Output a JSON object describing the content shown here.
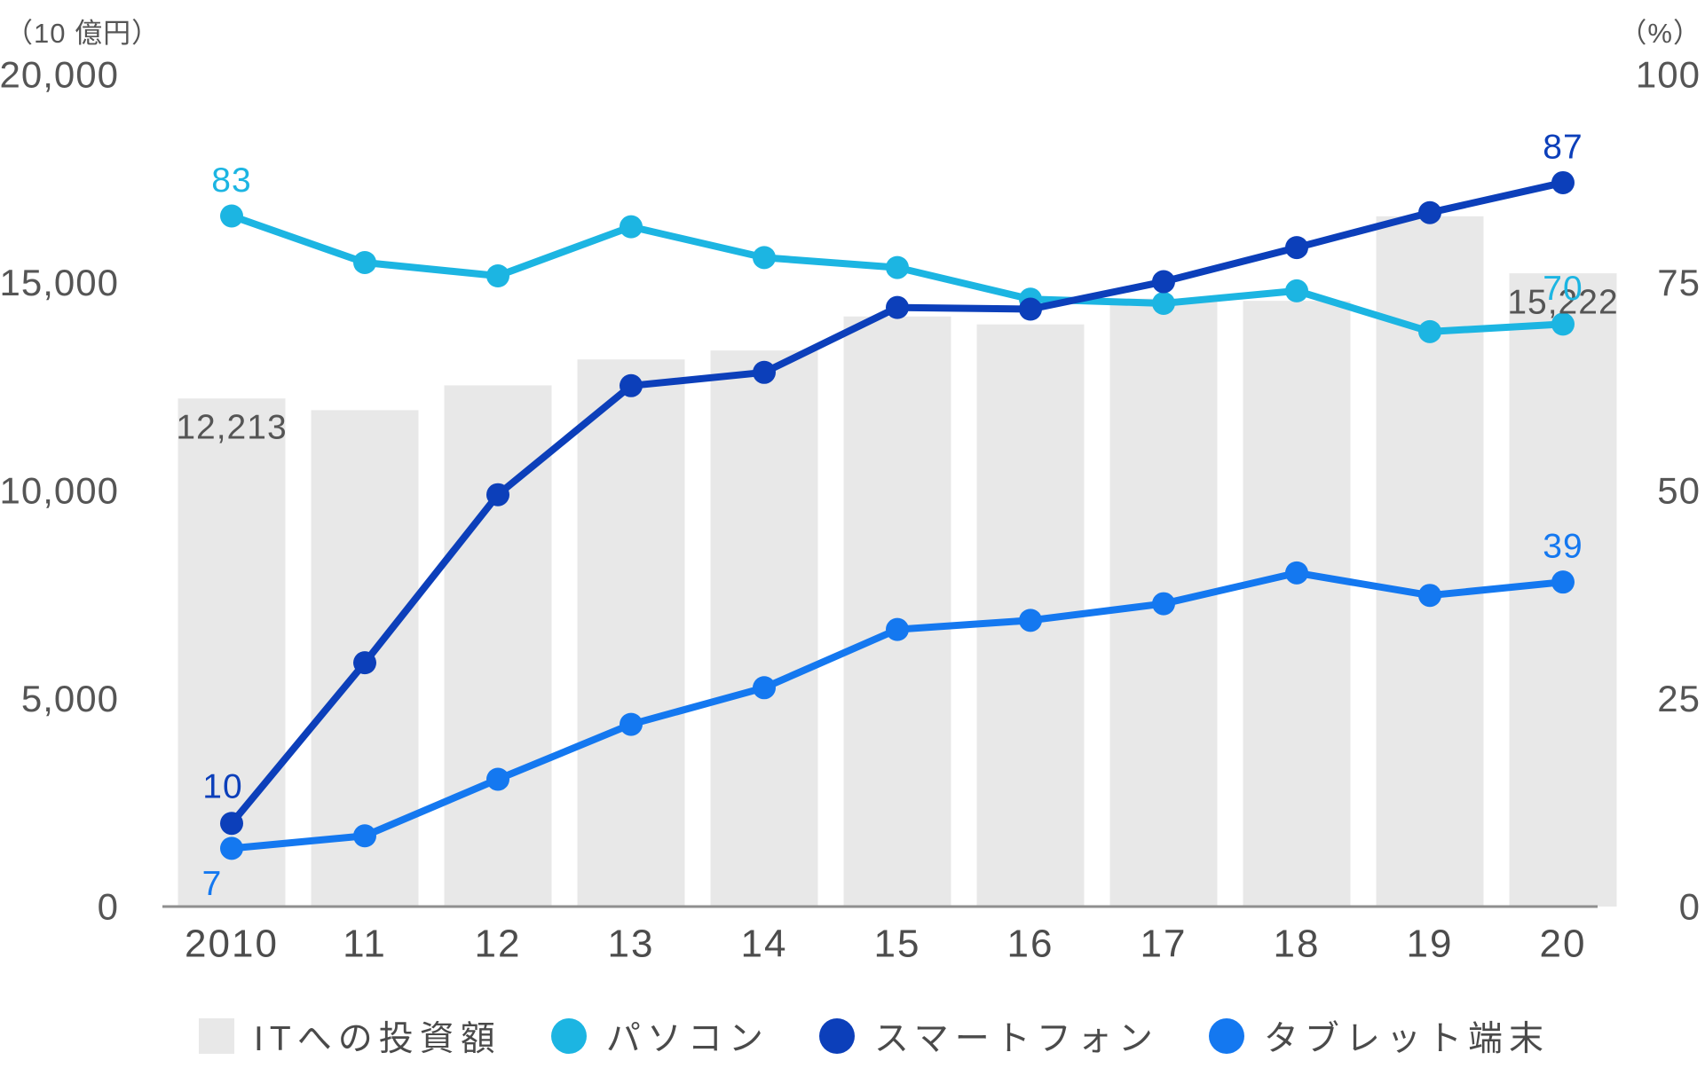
{
  "units": {
    "left": "（10 億円）",
    "right": "（%）"
  },
  "legend": {
    "items": [
      {
        "label": "ITへの投資額",
        "marker": "square",
        "color": "#e8e8e8"
      },
      {
        "label": "パソコン",
        "marker": "circle",
        "color": "#1cb5e2"
      },
      {
        "label": "スマートフォン",
        "marker": "circle",
        "color": "#0c3fba"
      },
      {
        "label": "タブレット端末",
        "marker": "circle",
        "color": "#1478f0"
      }
    ]
  },
  "chart_data": {
    "type": "combo-bar-line",
    "categories": [
      "2010",
      "11",
      "12",
      "13",
      "14",
      "15",
      "16",
      "17",
      "18",
      "19",
      "20"
    ],
    "bar": {
      "name": "ITへの投資額",
      "axis": "left",
      "unit": "10億円",
      "color": "#e8e8e8",
      "values": [
        12213,
        11932,
        12528,
        13151,
        13366,
        14184,
        13994,
        14614,
        14559,
        16592,
        15222
      ]
    },
    "series": [
      {
        "id": "pc",
        "name": "パソコン",
        "axis": "right",
        "unit": "%",
        "color": "#1cb5e2",
        "values": [
          83,
          77.4,
          75.8,
          81.7,
          78.0,
          76.8,
          73.0,
          72.5,
          74.0,
          69.1,
          70
        ]
      },
      {
        "id": "smartphone",
        "name": "スマートフォン",
        "axis": "right",
        "unit": "%",
        "color": "#0c3fba",
        "values": [
          10,
          29.3,
          49.5,
          62.6,
          64.2,
          72.0,
          71.8,
          75.1,
          79.2,
          83.4,
          87
        ]
      },
      {
        "id": "tablet",
        "name": "タブレット端末",
        "axis": "right",
        "unit": "%",
        "color": "#1478f0",
        "values": [
          7,
          8.5,
          15.3,
          21.9,
          26.3,
          33.3,
          34.4,
          36.4,
          40.1,
          37.4,
          39
        ]
      }
    ],
    "axes": {
      "left": {
        "unit": "（10 億円）",
        "min": 0,
        "max": 20000,
        "tick_values": [
          0,
          5000,
          10000,
          15000,
          20000
        ],
        "tick_labels": [
          "0",
          "5,000",
          "10,000",
          "15,000",
          "20,000"
        ]
      },
      "right": {
        "unit": "（%）",
        "min": 0,
        "max": 100,
        "tick_values": [
          0,
          25,
          50,
          75,
          100
        ],
        "tick_labels": [
          "0",
          "25",
          "50",
          "75",
          "100"
        ]
      },
      "x": {
        "labels": [
          "2010",
          "11",
          "12",
          "13",
          "14",
          "15",
          "16",
          "17",
          "18",
          "19",
          "20"
        ]
      }
    },
    "grid": false,
    "legend_position": "bottom",
    "annotations": [
      {
        "series": "bar",
        "index": 0,
        "text": "12,213",
        "placement": "bar-inside-top"
      },
      {
        "series": "bar",
        "index": 10,
        "text": "15,222",
        "placement": "bar-inside-top"
      },
      {
        "series": 0,
        "index": 0,
        "text": "83",
        "placement": "above"
      },
      {
        "series": 0,
        "index": 10,
        "text": "70",
        "placement": "above"
      },
      {
        "series": 1,
        "index": 0,
        "text": "10",
        "placement": "above-left"
      },
      {
        "series": 1,
        "index": 10,
        "text": "87",
        "placement": "above"
      },
      {
        "series": 2,
        "index": 0,
        "text": "7",
        "placement": "below-left"
      },
      {
        "series": 2,
        "index": 10,
        "text": "39",
        "placement": "above"
      }
    ],
    "text_colors": {
      "ticks": "#555555",
      "x_labels": "#4c4c4c",
      "bar_labels": "#555555"
    }
  }
}
